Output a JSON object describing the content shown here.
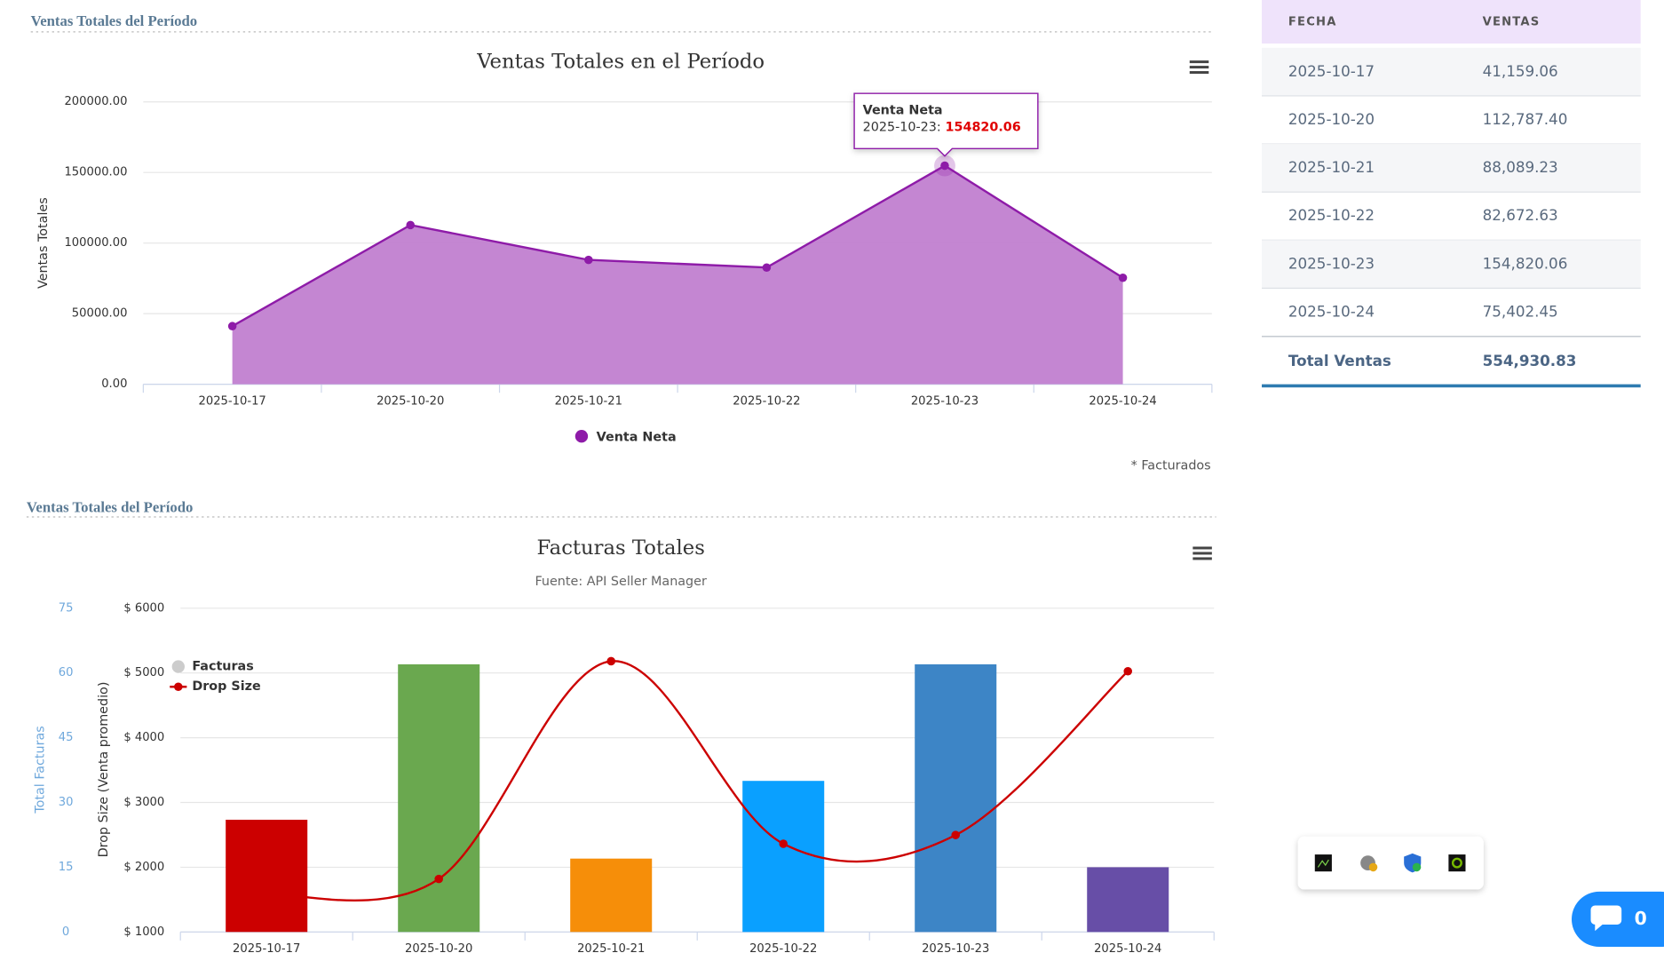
{
  "sections": [
    "Ventas Totales del Período",
    "Ventas Totales del Período"
  ],
  "chart_data": [
    {
      "type": "area",
      "title": "Ventas Totales en el Período",
      "y_title": "Ventas Totales",
      "categories": [
        "2025-10-17",
        "2025-10-20",
        "2025-10-21",
        "2025-10-22",
        "2025-10-23",
        "2025-10-24"
      ],
      "series": [
        {
          "name": "Venta Neta",
          "color": "#8e1ba8",
          "fill": "#c17fd0",
          "values": [
            41159.06,
            112787.4,
            88089.23,
            82672.63,
            154820.06,
            75402.45
          ]
        }
      ],
      "ylim": [
        0,
        200000
      ],
      "yticks": [
        {
          "value": 0,
          "label": "0.00"
        },
        {
          "value": 50000,
          "label": "50000.00"
        },
        {
          "value": 100000,
          "label": "100000.00"
        },
        {
          "value": 150000,
          "label": "150000.00"
        },
        {
          "value": 200000,
          "label": "200000.00"
        }
      ],
      "grid": true,
      "legend": "bottom",
      "tooltip": {
        "title": "Venta Neta",
        "label": "2025-10-23:",
        "value": 154820.06
      },
      "note": "* Facturados"
    },
    {
      "type": "bar-line",
      "title": "Facturas Totales",
      "subtitle": "Fuente: API Seller Manager",
      "y_title": "Drop Size (Venta promedio)",
      "y2_title": "Total Facturas",
      "categories": [
        "2025-10-17",
        "2025-10-20",
        "2025-10-21",
        "2025-10-22",
        "2025-10-23",
        "2025-10-24"
      ],
      "series": [
        {
          "name": "Facturas",
          "type": "bar",
          "axis": "y2",
          "color": "#cccccc",
          "colors": [
            "#cc0000",
            "#6aa84f",
            "#f68e09",
            "#0aa0ff",
            "#3d85c6",
            "#674ea7"
          ],
          "values": [
            26,
            62,
            17,
            35,
            62,
            15
          ]
        },
        {
          "name": "Drop Size",
          "type": "line",
          "color": "#cc0000",
          "values": [
            1583,
            1819,
            5182,
            2362,
            2497,
            5027
          ]
        }
      ],
      "ylim": [
        1000,
        6000
      ],
      "yticks": [
        {
          "value": 1000,
          "label": "$ 1000"
        },
        {
          "value": 2000,
          "label": "$ 2000"
        },
        {
          "value": 3000,
          "label": "$ 3000"
        },
        {
          "value": 4000,
          "label": "$ 4000"
        },
        {
          "value": 5000,
          "label": "$ 5000"
        },
        {
          "value": 6000,
          "label": "$ 6000"
        }
      ],
      "y2lim": [
        0,
        75
      ],
      "y2ticks": [
        0,
        15,
        30,
        45,
        60,
        75
      ],
      "y2_color": "#6fa8dc",
      "grid": true,
      "legend": "top-left"
    }
  ],
  "table": {
    "header": [
      "FECHA",
      "VENTAS"
    ],
    "rows": [
      [
        "2025-10-17",
        "41,159.06"
      ],
      [
        "2025-10-20",
        "112,787.40"
      ],
      [
        "2025-10-21",
        "88,089.23"
      ],
      [
        "2025-10-22",
        "82,672.63"
      ],
      [
        "2025-10-23",
        "154,820.06"
      ],
      [
        "2025-10-24",
        "75,402.45"
      ]
    ],
    "total": [
      "Total Ventas",
      "554,930.83"
    ]
  },
  "chat": {
    "count": 0
  }
}
